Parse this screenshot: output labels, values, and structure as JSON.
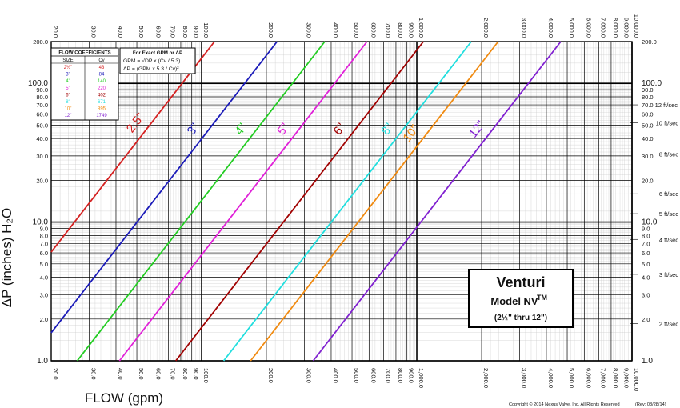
{
  "chart_data": {
    "type": "line",
    "title": "Venturi",
    "subtitle": "Model NV",
    "title_tm": "TM",
    "size_range": "(2½\" thru 12\")",
    "xlabel": "FLOW (gpm)",
    "ylabel": "ΔP (inches) H₂O",
    "x_scale": "log",
    "y_scale": "log",
    "xlim": [
      20,
      10000
    ],
    "ylim": [
      1,
      200
    ],
    "grid": true,
    "x_ticks": [
      "20.0",
      "30.0",
      "40.0",
      "50.0",
      "60.0",
      "70.0",
      "80.0",
      "90.0",
      "100.0",
      "200.0",
      "300.0",
      "400.0",
      "500.0",
      "600.0",
      "700.0",
      "800.0",
      "900.0",
      "1,000.0",
      "2,000.0",
      "3,000.0",
      "4,000.0",
      "5,000.0",
      "6,000.0",
      "7,000.0",
      "8,000.0",
      "9,000.0",
      "10,000.0"
    ],
    "y_ticks": [
      "1.0",
      "2.0",
      "3.0",
      "4.0",
      "5.0",
      "6.0",
      "7.0",
      "8.0",
      "9.0",
      "10.0",
      "20.0",
      "30.0",
      "40.0",
      "50.0",
      "60.0",
      "70.0",
      "80.0",
      "90.0",
      "100.0",
      "200.0"
    ],
    "velocity_labels": [
      "70.0 12 ft/sec",
      "10 ft/sec",
      "8 ft/sec",
      "6 ft/sec",
      "5 ft/sec",
      "4 ft/sec",
      "3 ft/sec",
      "2 ft/sec"
    ],
    "series": [
      {
        "name": "2.5\"",
        "cv": 43,
        "color": "#d42020"
      },
      {
        "name": "3\"",
        "cv": 84,
        "color": "#1a1ab8"
      },
      {
        "name": "4\"",
        "cv": 140,
        "color": "#22cc22"
      },
      {
        "name": "5\"",
        "cv": 220,
        "color": "#e020d8"
      },
      {
        "name": "6\"",
        "cv": 402,
        "color": "#a00000"
      },
      {
        "name": "8\"",
        "cv": 671,
        "color": "#20dede"
      },
      {
        "name": "10\"",
        "cv": 895,
        "color": "#f08a10"
      },
      {
        "name": "12\"",
        "cv": 1749,
        "color": "#8020d0"
      }
    ]
  },
  "coef_table": {
    "title": "FLOW COEFFICIENTS",
    "col_size": "SIZE",
    "col_cv": "Cv",
    "rows": [
      {
        "size": "2½\"",
        "cv": "43"
      },
      {
        "size": "3\"",
        "cv": "84"
      },
      {
        "size": "4\"",
        "cv": "140"
      },
      {
        "size": "5\"",
        "cv": "220"
      },
      {
        "size": "6\"",
        "cv": "402"
      },
      {
        "size": "8\"",
        "cv": "671"
      },
      {
        "size": "10\"",
        "cv": "895"
      },
      {
        "size": "12\"",
        "cv": "1749"
      }
    ]
  },
  "formula": {
    "title": "For Exact GPM or ΔP",
    "line1": "GPM = √DP x (Cv / 5.3)",
    "line2": "ΔP = (GPM x 5.3 / Cv)²"
  },
  "footer": {
    "copyright": "Copyright © 2014 Nexus Valve, Inc.  All Rights Reserved",
    "rev": "(Rev:  08/28/14)"
  }
}
